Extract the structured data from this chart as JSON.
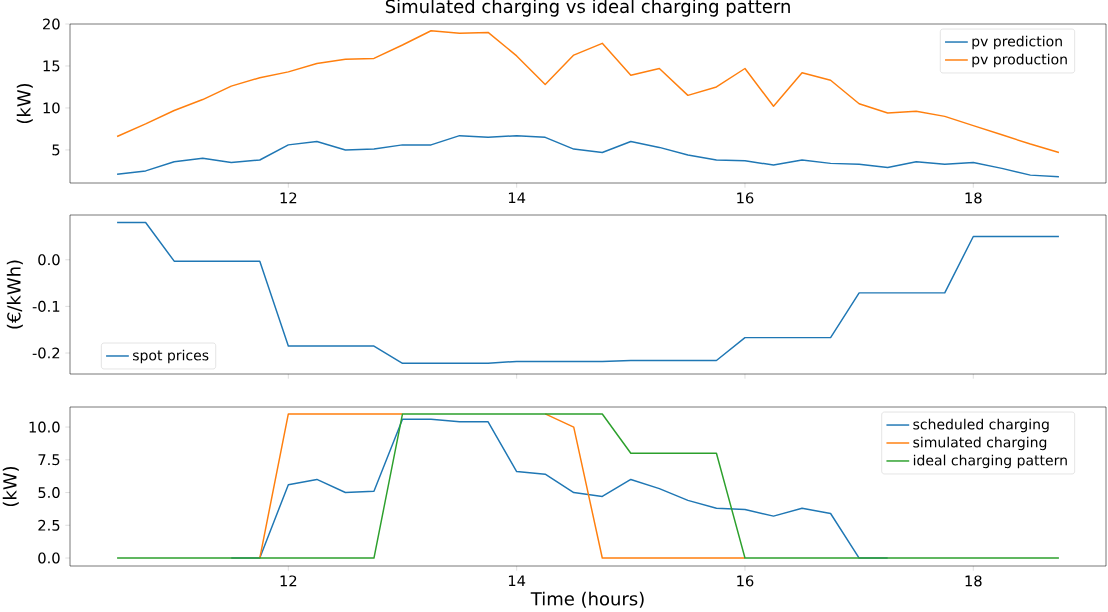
{
  "chart_data": [
    {
      "type": "line",
      "title": "Simulated charging vs ideal charging pattern",
      "ylabel": "(kW)",
      "x": [
        10.5,
        10.75,
        11,
        11.25,
        11.5,
        11.75,
        12,
        12.25,
        12.5,
        12.75,
        13,
        13.25,
        13.5,
        13.75,
        14,
        14.25,
        14.5,
        14.75,
        15,
        15.25,
        15.5,
        15.75,
        16,
        16.25,
        16.5,
        16.75,
        17,
        17.25,
        17.5,
        17.75,
        18,
        18.25,
        18.5,
        18.75
      ],
      "series": [
        {
          "name": "pv prediction",
          "color": "#1f77b4",
          "values": [
            2.1,
            2.5,
            3.6,
            4.0,
            3.5,
            3.8,
            5.6,
            6.0,
            5.0,
            5.1,
            5.6,
            5.6,
            6.7,
            6.5,
            6.7,
            6.5,
            5.1,
            4.7,
            6.0,
            5.3,
            4.4,
            3.8,
            3.7,
            3.2,
            3.8,
            3.4,
            3.3,
            2.9,
            3.6,
            3.3,
            3.5,
            2.8,
            2.0,
            1.8
          ]
        },
        {
          "name": "pv production",
          "color": "#ff7f0e",
          "values": [
            6.6,
            8.1,
            9.7,
            11.0,
            12.6,
            13.6,
            14.3,
            15.3,
            15.8,
            15.9,
            17.5,
            19.2,
            18.9,
            19.0,
            16.2,
            12.8,
            16.3,
            17.7,
            13.9,
            14.7,
            11.5,
            12.5,
            14.7,
            10.2,
            14.2,
            13.3,
            10.5,
            9.4,
            9.6,
            9.0,
            7.9,
            6.8,
            5.7,
            4.7
          ]
        }
      ],
      "xlim": [
        10.0875,
        19.1625
      ],
      "ylim": [
        1.06,
        20
      ],
      "xticks": [
        12,
        14,
        16,
        18
      ],
      "yticks": [
        5,
        10,
        15,
        20
      ],
      "legend": "top right"
    },
    {
      "type": "line",
      "ylabel": "(€/kWh)",
      "x": [
        10.5,
        10.75,
        11,
        11.25,
        11.5,
        11.75,
        12,
        12.25,
        12.5,
        12.75,
        13,
        13.25,
        13.5,
        13.75,
        14,
        14.25,
        14.5,
        14.75,
        15,
        15.25,
        15.5,
        15.75,
        16,
        16.25,
        16.5,
        16.75,
        17,
        17.25,
        17.5,
        17.75,
        18,
        18.25,
        18.5,
        18.75
      ],
      "series": [
        {
          "name": "spot prices",
          "color": "#1f77b4",
          "values": [
            0.08,
            0.08,
            -0.003,
            -0.003,
            -0.003,
            -0.003,
            -0.185,
            -0.185,
            -0.185,
            -0.185,
            -0.222,
            -0.222,
            -0.222,
            -0.222,
            -0.218,
            -0.218,
            -0.218,
            -0.218,
            -0.216,
            -0.216,
            -0.216,
            -0.216,
            -0.167,
            -0.167,
            -0.167,
            -0.167,
            -0.071,
            -0.071,
            -0.071,
            -0.071,
            0.05,
            0.05,
            0.05,
            0.05
          ]
        }
      ],
      "xlim": [
        10.0875,
        19.1625
      ],
      "ylim": [
        -0.245,
        0.096
      ],
      "xticks": [
        12,
        14,
        16,
        18
      ],
      "yticks": [
        -0.2,
        -0.1,
        {
          "value": 0,
          "label": "0.0"
        }
      ],
      "legend": "bottom left",
      "tick_labels": "y"
    },
    {
      "type": "line",
      "xlabel": "Time (hours)",
      "ylabel": "(kW)",
      "x": [
        10.5,
        10.75,
        11,
        11.25,
        11.5,
        11.75,
        12,
        12.25,
        12.5,
        12.75,
        13,
        13.25,
        13.5,
        13.75,
        14,
        14.25,
        14.5,
        14.75,
        15,
        15.25,
        15.5,
        15.75,
        16,
        16.25,
        16.5,
        16.75,
        17,
        17.25,
        17.5,
        17.75,
        18,
        18.25,
        18.5,
        18.75
      ],
      "series": [
        {
          "name": "scheduled charging",
          "color": "#1f77b4",
          "values": [
            null,
            null,
            null,
            null,
            0,
            0,
            5.6,
            6.0,
            5.0,
            5.1,
            10.6,
            10.6,
            10.4,
            10.4,
            6.6,
            6.4,
            5.0,
            4.7,
            6.0,
            5.3,
            4.4,
            3.8,
            3.7,
            3.2,
            3.8,
            3.4,
            0,
            0,
            null,
            null,
            null,
            null,
            null,
            null
          ]
        },
        {
          "name": "simulated charging",
          "color": "#ff7f0e",
          "values": [
            null,
            null,
            null,
            null,
            null,
            0,
            11,
            11,
            11,
            11,
            11,
            null,
            null,
            null,
            null,
            11,
            10.0,
            0,
            0,
            0,
            0,
            0,
            0,
            null,
            null,
            null,
            null,
            null,
            null,
            null,
            null,
            null,
            null,
            null
          ]
        },
        {
          "name": "ideal charging pattern",
          "color": "#2ca02c",
          "values": [
            0,
            0,
            0,
            0,
            0,
            0,
            0,
            0,
            0,
            0,
            11,
            11,
            11,
            11,
            11,
            11,
            11,
            11,
            8,
            8,
            8,
            8,
            0,
            0,
            0,
            0,
            0,
            0,
            0,
            0,
            0,
            0,
            0,
            0
          ]
        }
      ],
      "xlim": [
        10.0875,
        19.1625
      ],
      "ylim": [
        -0.61,
        11.53
      ],
      "xticks": [
        12,
        14,
        16,
        18
      ],
      "yticks": [
        {
          "value": 0,
          "label": "0.0"
        },
        {
          "value": 2.5,
          "label": "2.5"
        },
        {
          "value": 5,
          "label": "5.0"
        },
        {
          "value": 7.5,
          "label": "7.5"
        },
        {
          "value": 10,
          "label": "10.0"
        }
      ],
      "legend": "top right"
    }
  ]
}
